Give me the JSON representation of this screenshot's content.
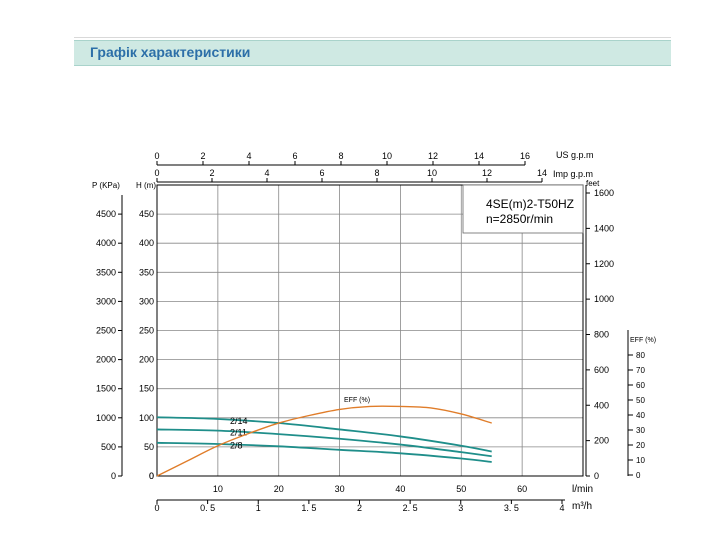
{
  "header": {
    "title": "Графік характеристики"
  },
  "chart_data": {
    "type": "line",
    "model": "4SE(m)2-T50HZ",
    "speed": "n=2850r/min",
    "axes": {
      "us_gpm": {
        "label": "US g.p.m",
        "ticks": [
          0,
          2,
          4,
          6,
          8,
          10,
          12,
          14,
          16
        ]
      },
      "imp_gpm": {
        "label": "Imp g.p.m",
        "ticks": [
          0,
          2,
          4,
          6,
          8,
          10,
          12,
          14
        ]
      },
      "pressure": {
        "label": "P (KPa)",
        "ticks": [
          0,
          500,
          1000,
          1500,
          2000,
          2500,
          3000,
          3500,
          4000,
          4500
        ]
      },
      "head_m": {
        "label": "H (m)",
        "ticks": [
          0,
          50,
          100,
          150,
          200,
          250,
          300,
          350,
          400,
          450
        ],
        "range": [
          0,
          500
        ]
      },
      "head_feet": {
        "label": "feet",
        "ticks": [
          0,
          200,
          400,
          600,
          800,
          1000,
          1200,
          1400,
          1600
        ]
      },
      "efficiency": {
        "label": "EFF (%)",
        "ticks": [
          0,
          10,
          20,
          30,
          40,
          50,
          60,
          70,
          80
        ]
      },
      "flow_lmin": {
        "label": "l/min",
        "ticks": [
          10,
          20,
          30,
          40,
          50,
          60
        ],
        "range": [
          0,
          70
        ]
      },
      "flow_m3h": {
        "label": "m³/h",
        "ticks": [
          "0",
          "0. 5",
          "1",
          "1. 5",
          "2",
          "2. 5",
          "3",
          "3. 5",
          "4"
        ]
      }
    },
    "series": [
      {
        "name": "2/14",
        "x": [
          0,
          10,
          20,
          30,
          40,
          50,
          55
        ],
        "y": [
          101,
          98,
          91,
          80,
          68,
          52,
          42
        ]
      },
      {
        "name": "2/11",
        "x": [
          0,
          10,
          20,
          30,
          40,
          50,
          55
        ],
        "y": [
          80,
          78,
          72,
          64,
          54,
          41,
          34
        ]
      },
      {
        "name": "2/8",
        "x": [
          0,
          10,
          20,
          30,
          40,
          50,
          55
        ],
        "y": [
          57,
          55,
          51,
          45,
          39,
          30,
          24
        ]
      }
    ],
    "efficiency_curve": {
      "name": "EFF (%)",
      "x": [
        0,
        5,
        10,
        15,
        20,
        25,
        30,
        35,
        40,
        45,
        50,
        55
      ],
      "y": [
        0,
        10,
        20,
        28,
        35,
        40,
        44,
        46,
        46,
        45,
        41,
        35
      ]
    },
    "colors": {
      "head_curve": "#1f8e8a",
      "efficiency_curve": "#e07d2a",
      "grid": "#888888",
      "axis": "#000000"
    }
  }
}
